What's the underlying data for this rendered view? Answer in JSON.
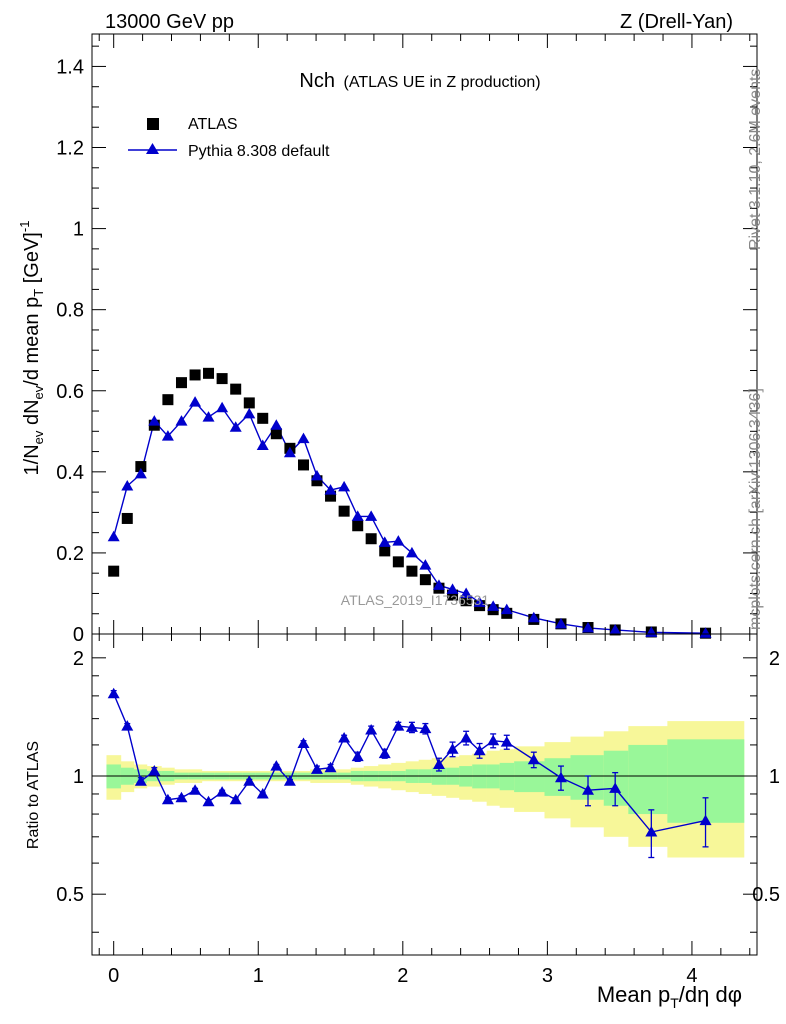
{
  "header": {
    "left": "13000 GeV pp",
    "right": "Z (Drell-Yan)"
  },
  "plot_title": {
    "main": "Nch",
    "sub": "(ATLAS UE in Z production)"
  },
  "watermark": "ATLAS_2019_I1736531",
  "side_labels": {
    "rivet": "Rivet 3.1.10,  2.6M events",
    "mcplots": "mcplots.cern.ch [arXiv:1306.3436]"
  },
  "axis_labels": {
    "y_main": "1/N_ev dN_ev/d mean p_T [GeV]^-1",
    "y_ratio": "Ratio to ATLAS",
    "x": "Mean p_T/dη dφ"
  },
  "legend": {
    "data": "ATLAS",
    "mc": "Pythia 8.308 default"
  },
  "colors": {
    "data": "#000000",
    "mc": "#0000cc",
    "band_inner": "#99f799",
    "band_outer": "#f7f799"
  },
  "chart_data": [
    {
      "type": "scatter",
      "panel": "main",
      "xlim": [
        -0.15,
        4.45
      ],
      "ylim": [
        0,
        1.48
      ],
      "xticks": [
        0,
        1,
        2,
        3,
        4
      ],
      "yticks": [
        0,
        0.2,
        0.4,
        0.6,
        0.8,
        1,
        1.2,
        1.4
      ],
      "x": [
        0,
        0.094,
        0.188,
        0.281,
        0.375,
        0.469,
        0.563,
        0.656,
        0.75,
        0.844,
        0.938,
        1.031,
        1.125,
        1.219,
        1.313,
        1.406,
        1.5,
        1.594,
        1.688,
        1.781,
        1.875,
        1.969,
        2.063,
        2.156,
        2.25,
        2.344,
        2.438,
        2.531,
        2.625,
        2.719,
        2.906,
        3.094,
        3.281,
        3.469,
        3.719,
        4.094
      ],
      "series": [
        {
          "name": "ATLAS",
          "values": [
            0.155,
            0.285,
            0.413,
            0.515,
            0.578,
            0.62,
            0.639,
            0.643,
            0.63,
            0.604,
            0.57,
            0.532,
            0.494,
            0.458,
            0.417,
            0.378,
            0.34,
            0.303,
            0.267,
            0.235,
            0.205,
            0.178,
            0.155,
            0.134,
            0.113,
            0.096,
            0.082,
            0.07,
            0.06,
            0.051,
            0.036,
            0.025,
            0.016,
            0.01,
            0.005,
            0.002
          ]
        },
        {
          "name": "Pythia 8.308 default",
          "values": [
            0.24,
            0.365,
            0.395,
            0.525,
            0.488,
            0.525,
            0.572,
            0.535,
            0.558,
            0.51,
            0.543,
            0.465,
            0.515,
            0.447,
            0.482,
            0.39,
            0.355,
            0.363,
            0.29,
            0.29,
            0.226,
            0.229,
            0.2,
            0.17,
            0.12,
            0.11,
            0.1,
            0.078,
            0.068,
            0.06,
            0.04,
            0.025,
            0.015,
            0.01,
            0.004,
            0.002
          ]
        }
      ]
    },
    {
      "type": "scatter",
      "panel": "ratio",
      "xlim": [
        -0.15,
        4.45
      ],
      "ylim": [
        0.35,
        2.3
      ],
      "yscale": "log",
      "yticks": [
        0.5,
        1,
        2
      ],
      "x": [
        0,
        0.094,
        0.188,
        0.281,
        0.375,
        0.469,
        0.563,
        0.656,
        0.75,
        0.844,
        0.938,
        1.031,
        1.125,
        1.219,
        1.313,
        1.406,
        1.5,
        1.594,
        1.688,
        1.781,
        1.875,
        1.969,
        2.063,
        2.156,
        2.25,
        2.344,
        2.438,
        2.531,
        2.625,
        2.719,
        2.906,
        3.094,
        3.281,
        3.469,
        3.719,
        4.094
      ],
      "series": [
        {
          "name": "Pythia 8.308 default",
          "values": [
            1.62,
            1.34,
            0.97,
            1.03,
            0.87,
            0.88,
            0.92,
            0.86,
            0.91,
            0.87,
            0.97,
            0.9,
            1.06,
            0.97,
            1.21,
            1.04,
            1.05,
            1.25,
            1.12,
            1.31,
            1.14,
            1.34,
            1.33,
            1.32,
            1.07,
            1.17,
            1.25,
            1.16,
            1.23,
            1.22,
            1.1,
            0.99,
            0.92,
            0.93,
            0.72,
            0.77
          ],
          "errors": [
            0.03,
            0.02,
            0.02,
            0.02,
            0.01,
            0.01,
            0.01,
            0.01,
            0.01,
            0.01,
            0.01,
            0.01,
            0.01,
            0.01,
            0.02,
            0.02,
            0.02,
            0.02,
            0.03,
            0.03,
            0.03,
            0.03,
            0.04,
            0.04,
            0.04,
            0.05,
            0.05,
            0.05,
            0.05,
            0.05,
            0.05,
            0.07,
            0.08,
            0.09,
            0.1,
            0.11
          ]
        }
      ],
      "band_edges": [
        -0.05,
        0.05,
        0.14,
        0.23,
        0.33,
        0.42,
        0.52,
        0.61,
        0.7,
        0.8,
        0.89,
        0.98,
        1.08,
        1.17,
        1.27,
        1.36,
        1.45,
        1.55,
        1.64,
        1.73,
        1.83,
        1.92,
        2.02,
        2.11,
        2.2,
        2.3,
        2.39,
        2.48,
        2.58,
        2.67,
        2.77,
        2.98,
        3.16,
        3.39,
        3.56,
        3.83,
        4.36
      ],
      "band_inner": [
        0.07,
        0.05,
        0.04,
        0.03,
        0.03,
        0.02,
        0.02,
        0.02,
        0.02,
        0.02,
        0.02,
        0.02,
        0.02,
        0.02,
        0.02,
        0.02,
        0.02,
        0.02,
        0.03,
        0.03,
        0.03,
        0.03,
        0.04,
        0.04,
        0.05,
        0.05,
        0.06,
        0.07,
        0.07,
        0.08,
        0.09,
        0.11,
        0.13,
        0.16,
        0.2,
        0.24
      ],
      "band_outer": [
        0.13,
        0.09,
        0.07,
        0.06,
        0.05,
        0.04,
        0.04,
        0.03,
        0.03,
        0.03,
        0.03,
        0.03,
        0.03,
        0.03,
        0.03,
        0.04,
        0.04,
        0.04,
        0.05,
        0.06,
        0.07,
        0.08,
        0.09,
        0.1,
        0.11,
        0.12,
        0.13,
        0.14,
        0.16,
        0.17,
        0.19,
        0.22,
        0.26,
        0.3,
        0.34,
        0.38
      ]
    }
  ]
}
